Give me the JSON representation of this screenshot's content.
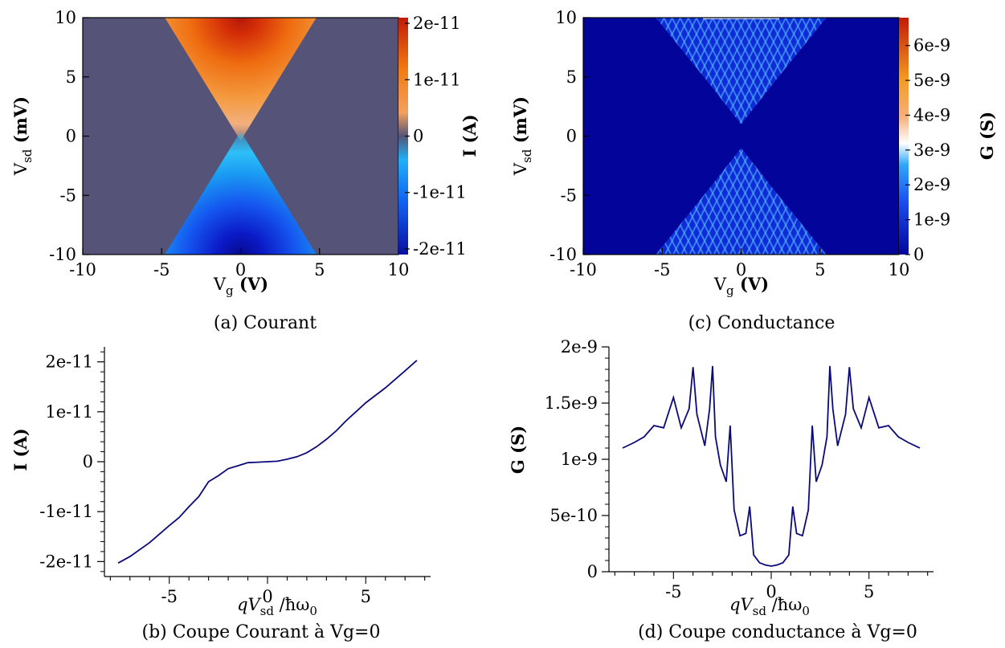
{
  "chart_data": [
    {
      "id": "a",
      "type": "heatmap",
      "caption": "(a) Courant",
      "xlabel": "V",
      "xlabel_sub": "g",
      "xlabel_unit": " (V)",
      "ylabel": "V",
      "ylabel_sub": "sd",
      "ylabel_unit": " (mV)",
      "colorbar_label": "I (A)",
      "xlim": [
        -10,
        10
      ],
      "ylim": [
        -10,
        10
      ],
      "x_ticks": [
        "-10",
        "-5",
        "0",
        "5",
        "10"
      ],
      "y_ticks": [
        "-10",
        "-5",
        "0",
        "5",
        "10"
      ],
      "colorbar_ticks": [
        "-2e-11",
        "-1e-11",
        "0",
        "1e-11",
        "2e-11"
      ],
      "color_range": [
        -2.1e-11,
        2.1e-11
      ],
      "pattern": "V-shaped cones opening from (0,0): positive current for Vsd>0 (orange/red), negative for Vsd<0 (blue), zero elsewhere",
      "colors": [
        "#0a0f9e",
        "#1160f0",
        "#22b0f5",
        "#545478",
        "#f2a060",
        "#f07c14",
        "#c01a08"
      ]
    },
    {
      "id": "b",
      "type": "line",
      "caption": "(b) Coupe Courant à Vg=0",
      "xlabel": "qV",
      "xlabel_sub": "sd",
      "xlabel_tail": " /ħω",
      "xlabel_tail_sub": "0",
      "ylabel": "I (A)",
      "xlim": [
        -8.3,
        8.3
      ],
      "ylim": [
        -2.3e-11,
        2.3e-11
      ],
      "x_ticks": [
        "-5",
        "0",
        "5"
      ],
      "y_ticks": [
        "-2e-11",
        "-1e-11",
        "0",
        "1e-11",
        "2e-11"
      ],
      "color": "#0a0a7a",
      "x": [
        -7.6,
        -7.0,
        -6.0,
        -5.0,
        -4.5,
        -4.0,
        -3.5,
        -3.0,
        -2.5,
        -2.0,
        -1.5,
        -1.0,
        -0.5,
        0.0,
        0.5,
        1.0,
        1.5,
        2.0,
        2.5,
        3.0,
        3.5,
        4.0,
        4.5,
        5.0,
        6.0,
        7.0,
        7.6
      ],
      "y": [
        -2.03e-11,
        -1.9e-11,
        -1.62e-11,
        -1.28e-11,
        -1.12e-11,
        -9e-12,
        -7e-12,
        -4e-12,
        -2.8e-12,
        -1.4e-12,
        -8e-13,
        -2e-13,
        -1e-13,
        0.0,
        1e-13,
        5e-13,
        1e-12,
        1.8e-12,
        3e-12,
        4.5e-12,
        6.2e-12,
        8.2e-12,
        1e-11,
        1.18e-11,
        1.48e-11,
        1.82e-11,
        2.03e-11
      ]
    },
    {
      "id": "c",
      "type": "heatmap",
      "caption": "(c) Conductance",
      "xlabel": "V",
      "xlabel_sub": "g",
      "xlabel_unit": " (V)",
      "ylabel": "V",
      "ylabel_sub": "sd",
      "ylabel_unit": " (mV)",
      "colorbar_label": "G (S)",
      "xlim": [
        -10,
        10
      ],
      "ylim": [
        -10,
        10
      ],
      "x_ticks": [
        "-10",
        "-5",
        "0",
        "5",
        "10"
      ],
      "y_ticks": [
        "-10",
        "-5",
        "0",
        "5",
        "10"
      ],
      "colorbar_ticks": [
        "0",
        "1e-9",
        "2e-9",
        "3e-9",
        "4e-9",
        "5e-9",
        "6e-9"
      ],
      "color_range": [
        0,
        6.8e-09
      ],
      "pattern": "dark blue background with nested V-shaped conductance lines (cones) opening from (0,0) up and down",
      "colors": [
        "#03059a",
        "#1a4cf0",
        "#30a8f8",
        "#ffffff",
        "#f6b07a",
        "#f59a20",
        "#c31a08"
      ]
    },
    {
      "id": "d",
      "type": "line",
      "caption": "(d) Coupe conductance à Vg=0",
      "xlabel": "qV",
      "xlabel_sub": "sd",
      "xlabel_tail": " /ħω",
      "xlabel_tail_sub": "0",
      "ylabel": "G (S)",
      "xlim": [
        -8.3,
        8.3
      ],
      "ylim": [
        0,
        2e-09
      ],
      "x_ticks": [
        "-5",
        "0",
        "5"
      ],
      "y_ticks": [
        "0",
        "5e-10",
        "1e-9",
        "1.5e-9",
        "2e-9"
      ],
      "color": "#0a0a7a",
      "x": [
        -7.6,
        -7.0,
        -6.5,
        -6.0,
        -5.5,
        -5.0,
        -4.6,
        -4.2,
        -4.0,
        -3.8,
        -3.4,
        -3.15,
        -3.0,
        -2.85,
        -2.6,
        -2.3,
        -2.1,
        -1.9,
        -1.6,
        -1.3,
        -1.1,
        -0.9,
        -0.6,
        -0.3,
        0.0,
        0.3,
        0.6,
        0.9,
        1.1,
        1.3,
        1.6,
        1.9,
        2.1,
        2.3,
        2.6,
        2.85,
        3.0,
        3.15,
        3.4,
        3.8,
        4.0,
        4.2,
        4.6,
        5.0,
        5.5,
        6.0,
        6.5,
        7.0,
        7.6
      ],
      "y": [
        1.1e-09,
        1.15e-09,
        1.2e-09,
        1.3e-09,
        1.28e-09,
        1.55e-09,
        1.28e-09,
        1.45e-09,
        1.82e-09,
        1.4e-09,
        1.12e-09,
        1.45e-09,
        1.83e-09,
        1.2e-09,
        9.5e-10,
        8e-10,
        1.3e-09,
        5.5e-10,
        3.2e-10,
        3.4e-10,
        5.8e-10,
        1.5e-10,
        8e-11,
        6e-11,
        5e-11,
        6e-11,
        8e-11,
        1.5e-10,
        5.8e-10,
        3.4e-10,
        3.2e-10,
        5.5e-10,
        1.3e-09,
        8e-10,
        9.5e-10,
        1.2e-09,
        1.83e-09,
        1.45e-09,
        1.12e-09,
        1.4e-09,
        1.82e-09,
        1.45e-09,
        1.28e-09,
        1.55e-09,
        1.28e-09,
        1.3e-09,
        1.2e-09,
        1.15e-09,
        1.1e-09
      ]
    }
  ]
}
